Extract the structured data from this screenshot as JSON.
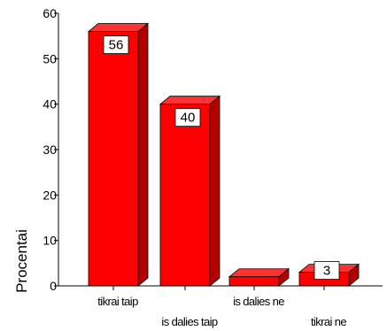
{
  "chart_data": {
    "type": "bar",
    "title": "",
    "xlabel": "",
    "ylabel": "Procentai",
    "categories": [
      "tikrai taip",
      "is dalies taip",
      "is dalies ne",
      "tikrai ne"
    ],
    "values": [
      56,
      40,
      2,
      3
    ],
    "data_labels": [
      "56",
      "40",
      "",
      "3"
    ],
    "ylim": [
      0,
      60
    ],
    "yticks": [
      "0",
      "10",
      "20",
      "30",
      "40",
      "50",
      "60"
    ],
    "grid": false,
    "legend": "none",
    "style": "3d",
    "colors": {
      "front": "#ff0000",
      "top": "#ff3333",
      "side": "#b20000",
      "outline": "#000000"
    }
  }
}
